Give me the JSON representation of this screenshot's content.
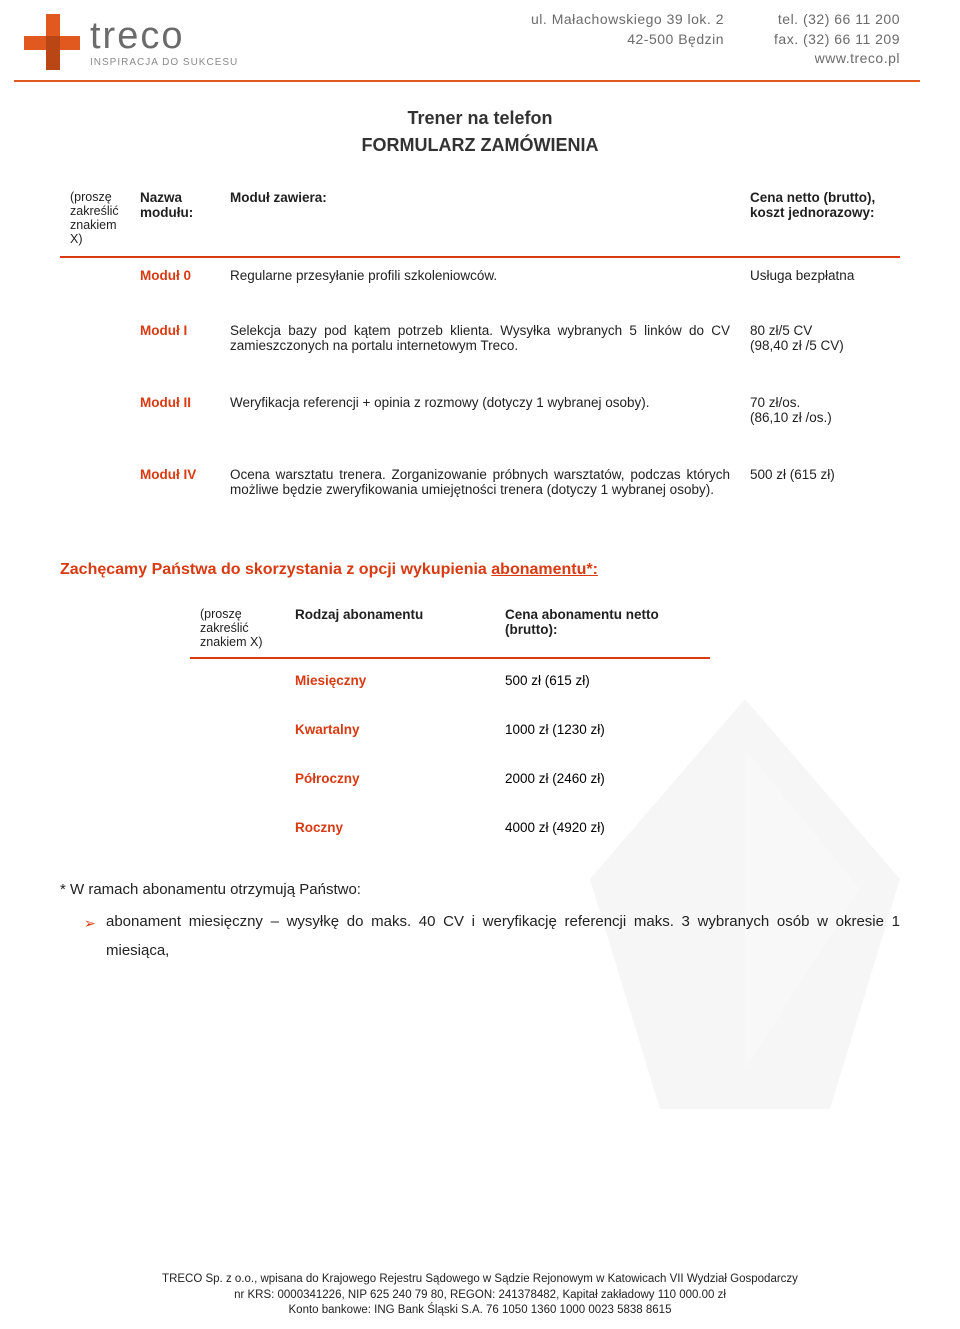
{
  "header": {
    "logo_word": "treco",
    "logo_tagline": "INSPIRACJA DO SUKCESU",
    "address_line1": "ul. Małachowskiego 39 lok. 2",
    "address_line2": "42-500 Będzin",
    "contact_line1": "tel. (32) 66 11 200",
    "contact_line2": "fax. (32) 66 11 209",
    "contact_line3": "www.treco.pl",
    "brand_color": "#e1591f",
    "text_color": "#6b6b6b"
  },
  "title": "Trener na telefon",
  "subtitle": "FORMULARZ ZAMÓWIENIA",
  "modules_header": {
    "check": "(proszę zakreślić znakiem X)",
    "name": "Nazwa modułu:",
    "desc": "Moduł zawiera:",
    "price": "Cena netto (brutto), koszt jednorazowy:"
  },
  "modules": [
    {
      "name": "Moduł 0",
      "desc": "Regularne przesyłanie profili szkoleniowców.",
      "price": "Usługa bezpłatna"
    },
    {
      "name": "Moduł I",
      "desc": "Selekcja bazy pod kątem potrzeb klienta. Wysyłka wybranych 5 linków do CV zamieszczonych na portalu internetowym Treco.",
      "price": "80 zł/5 CV\n(98,40 zł /5 CV)"
    },
    {
      "name": "Moduł II",
      "desc": "Weryfikacja referencji + opinia z rozmowy (dotyczy 1 wybranej osoby).",
      "price": "70 zł/os.\n(86,10 zł /os.)"
    },
    {
      "name": "Moduł IV",
      "desc": "Ocena warsztatu trenera. Zorganizowanie próbnych warsztatów, podczas których możliwe będzie zweryfikowania umiejętności trenera (dotyczy 1 wybranej osoby).",
      "price": "500 zł (615 zł)"
    }
  ],
  "encourage_prefix": "Zachęcamy Państwa do skorzystania z opcji wykupienia ",
  "encourage_link": "abonamentu*:",
  "sub_header": {
    "check": "(proszę zakreślić znakiem X)",
    "type": "Rodzaj abonamentu",
    "price": "Cena abonamentu netto (brutto):"
  },
  "subscriptions": [
    {
      "type": "Miesięczny",
      "price": "500 zł (615 zł)"
    },
    {
      "type": "Kwartalny",
      "price": "1000 zł (1230 zł)"
    },
    {
      "type": "Półroczny",
      "price": "2000 zł (2460 zł)"
    },
    {
      "type": "Roczny",
      "price": "4000 zł (4920 zł)"
    }
  ],
  "footnote_head": "* W ramach abonamentu otrzymują Państwo:",
  "footnote_item": "abonament miesięczny – wysyłkę do maks. 40 CV i weryfikację referencji maks. 3 wybranych osób w okresie 1 miesiąca,",
  "footer": {
    "line1": "TRECO Sp. z o.o., wpisana do Krajowego Rejestru Sądowego w Sądzie Rejonowym w Katowicach VII Wydział Gospodarczy",
    "line2": "nr KRS: 0000341226, NIP 625 240 79 80, REGON: 241378482, Kapitał zakładowy 110 000.00 zł",
    "line3": "Konto bankowe: ING Bank Śląski S.A. 76 1050 1360 1000 0023 5838 8615"
  },
  "colors": {
    "accent": "#d83a12",
    "logo_orange": "#e1591f",
    "text_gray": "#6b6b6b"
  }
}
